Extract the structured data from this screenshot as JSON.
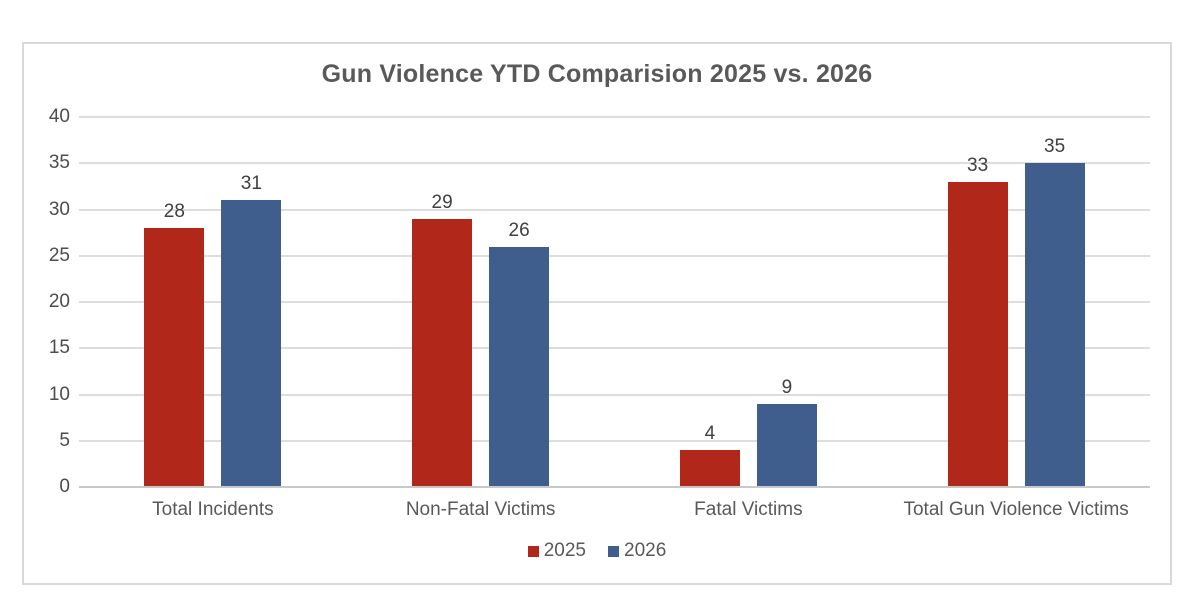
{
  "chart_data": {
    "type": "bar",
    "title": "Gun Violence YTD Comparision 2025 vs. 2026",
    "categories": [
      "Total Incidents",
      "Non-Fatal Victims",
      "Fatal Victims",
      "Total Gun Violence Victims"
    ],
    "series": [
      {
        "name": "2025",
        "color": "#B12719",
        "values": [
          28,
          29,
          4,
          33
        ]
      },
      {
        "name": "2026",
        "color": "#3F5E8D",
        "values": [
          31,
          26,
          9,
          35
        ]
      }
    ],
    "ylim": [
      0,
      40
    ],
    "ytick_step": 5,
    "ytick_labels": [
      "0",
      "5",
      "10",
      "15",
      "20",
      "25",
      "30",
      "35",
      "40"
    ],
    "grid": true,
    "value_labels": true,
    "legend_position": "bottom"
  },
  "colors": {
    "background": "#FFFFFF",
    "frame_border": "#D9D9D9",
    "gridline": "#DDDDDD",
    "baseline": "#C9C9C9",
    "title_text": "#595959",
    "axis_text": "#4D4D4D",
    "category_text": "#595959",
    "value_label_text": "#404040",
    "legend_text": "#595959"
  }
}
